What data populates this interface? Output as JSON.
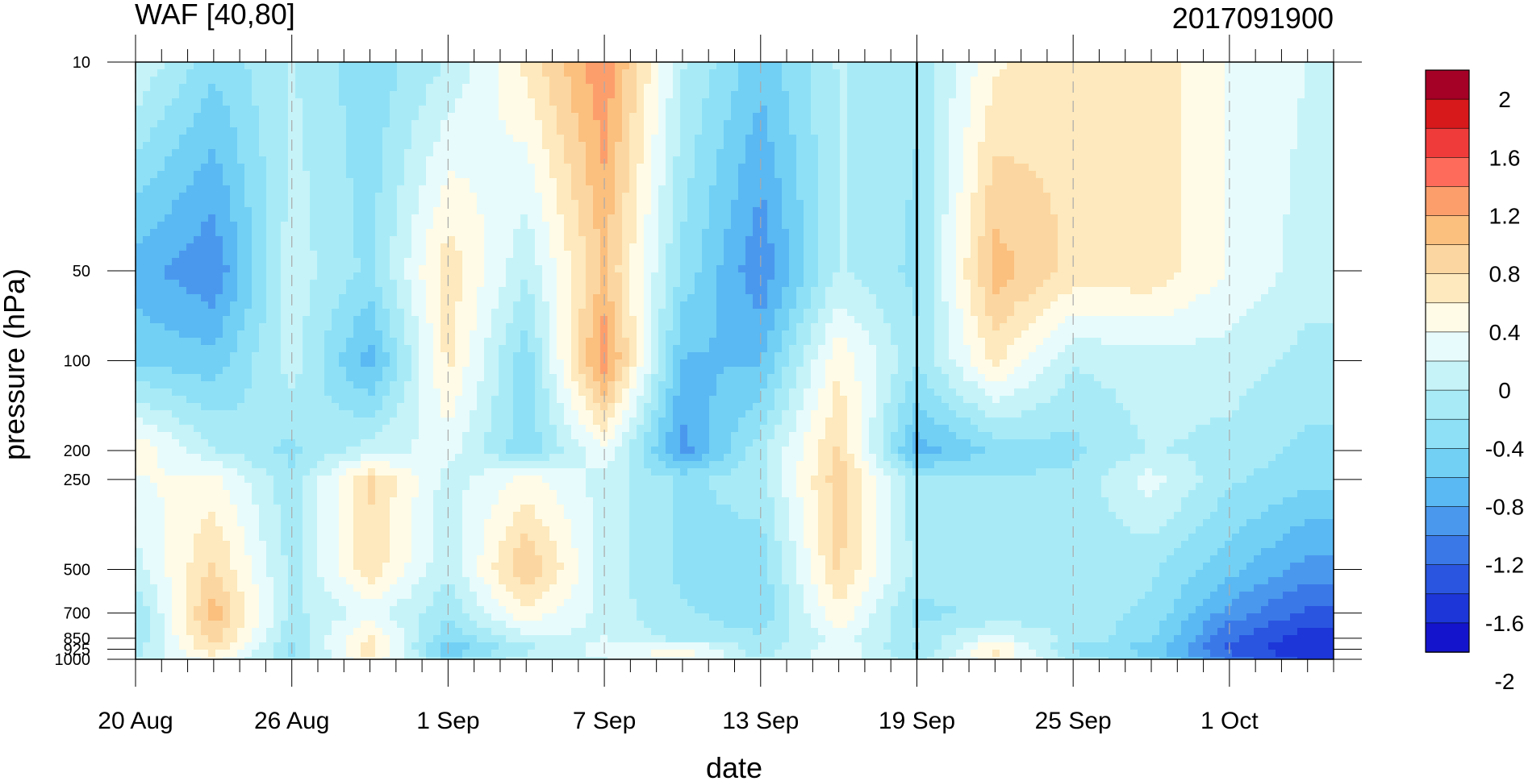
{
  "chart_data": {
    "type": "heatmap",
    "title": "WAF [40,80]",
    "date_label": "2017091900",
    "xlabel": "date",
    "ylabel": "pressure (hPa)",
    "x_ticks": [
      {
        "date": "2017-08-20",
        "label": "20 Aug"
      },
      {
        "date": "2017-08-26",
        "label": "26 Aug"
      },
      {
        "date": "2017-09-01",
        "label": "1 Sep"
      },
      {
        "date": "2017-09-07",
        "label": "7 Sep"
      },
      {
        "date": "2017-09-13",
        "label": "13 Sep"
      },
      {
        "date": "2017-09-19",
        "label": "19 Sep"
      },
      {
        "date": "2017-09-25",
        "label": "25 Sep"
      },
      {
        "date": "2017-10-01",
        "label": "1 Oct"
      }
    ],
    "xlim": [
      "2017-08-20",
      "2017-10-05"
    ],
    "y_scale": "log",
    "ylim": [
      1000,
      10
    ],
    "y_ticks": [
      {
        "value": 10,
        "label": "10"
      },
      {
        "value": 50,
        "label": "50"
      },
      {
        "value": 100,
        "label": "100"
      },
      {
        "value": 200,
        "label": "200"
      },
      {
        "value": 250,
        "label": "250"
      },
      {
        "value": 500,
        "label": "500"
      },
      {
        "value": 700,
        "label": "700"
      },
      {
        "value": 850,
        "label": "850"
      },
      {
        "value": 925,
        "label": "925"
      },
      {
        "value": 1000,
        "label": "1000"
      }
    ],
    "reference_line": {
      "date": "2017-09-19"
    },
    "colorbar": {
      "labels": [
        "2",
        "1.6",
        "1.2",
        "0.8",
        "0.4",
        "0",
        "-0.4",
        "-0.8",
        "-1.2",
        "-1.6",
        "-2"
      ],
      "colors": [
        "#a50026",
        "#d7191c",
        "#f03b3b",
        "#ff6b5a",
        "#fc9e6c",
        "#fbbf7e",
        "#fcd6a0",
        "#fde9bd",
        "#fffbe6",
        "#e8fbfc",
        "#c6f3f8",
        "#a8ebf7",
        "#8ee0f6",
        "#72d0f5",
        "#5ab8f2",
        "#4a98ee",
        "#3a78e8",
        "#2a55e0",
        "#1c36d8",
        "#1414cc"
      ],
      "min": -2.2,
      "max": 2.2
    },
    "dates": [
      "2017-08-20",
      "2017-08-23",
      "2017-08-26",
      "2017-08-29",
      "2017-09-01",
      "2017-09-04",
      "2017-09-07",
      "2017-09-10",
      "2017-09-13",
      "2017-09-16",
      "2017-09-19",
      "2017-09-22",
      "2017-09-25",
      "2017-09-28",
      "2017-10-01",
      "2017-10-04"
    ],
    "levels_hPa": [
      10,
      50,
      100,
      200,
      250,
      500,
      700,
      850,
      925,
      1000
    ],
    "values": [
      [
        0.0,
        -0.6,
        -0.2,
        -0.6,
        -0.2,
        0.5,
        1.3,
        -0.2,
        -0.8,
        -0.2,
        -0.4,
        0.4,
        0.6,
        0.6,
        0.2,
        0.0
      ],
      [
        -1.0,
        -1.3,
        -0.1,
        -0.5,
        0.6,
        -0.2,
        0.9,
        -0.5,
        -1.3,
        -0.2,
        -0.5,
        1.0,
        0.6,
        0.6,
        0.2,
        -0.1
      ],
      [
        -0.7,
        -0.8,
        -0.1,
        -1.0,
        0.5,
        -0.6,
        1.3,
        -0.9,
        -0.9,
        0.4,
        -0.4,
        0.5,
        -0.2,
        -0.1,
        -0.1,
        -0.3
      ],
      [
        0.4,
        -0.2,
        -0.5,
        -0.1,
        0.1,
        -0.6,
        0.2,
        -1.2,
        -0.3,
        0.7,
        -1.0,
        -0.6,
        -0.5,
        -0.2,
        -0.3,
        -0.5
      ],
      [
        0.2,
        0.3,
        -0.4,
        0.7,
        -0.1,
        0.3,
        -0.1,
        -0.5,
        -0.3,
        0.8,
        -0.4,
        -0.4,
        -0.4,
        0.1,
        -0.4,
        -0.6
      ],
      [
        -0.1,
        0.7,
        -0.3,
        0.6,
        -0.2,
        0.9,
        -0.1,
        -0.5,
        -0.6,
        0.7,
        -0.3,
        -0.4,
        -0.3,
        -0.4,
        -0.8,
        -1.2
      ],
      [
        -0.5,
        1.0,
        -0.3,
        0.1,
        -0.4,
        0.4,
        -0.1,
        -0.4,
        -0.6,
        0.4,
        -0.5,
        -0.4,
        -0.3,
        -0.5,
        -1.2,
        -1.6
      ],
      [
        -0.4,
        0.8,
        -0.4,
        0.5,
        -0.6,
        -0.1,
        0.0,
        -0.3,
        -0.4,
        0.1,
        -0.4,
        0.1,
        -0.3,
        -0.6,
        -1.5,
        -1.9
      ],
      [
        -0.3,
        0.6,
        -0.5,
        0.6,
        -0.9,
        -0.3,
        0.1,
        0.4,
        -0.4,
        0.2,
        -0.5,
        0.5,
        -0.5,
        -0.8,
        -1.6,
        -2.0
      ],
      [
        -0.2,
        0.3,
        -0.4,
        0.4,
        -0.5,
        -0.1,
        0.0,
        0.2,
        -0.2,
        0.1,
        -0.3,
        0.4,
        -0.3,
        -0.6,
        -1.4,
        -1.8
      ]
    ]
  }
}
